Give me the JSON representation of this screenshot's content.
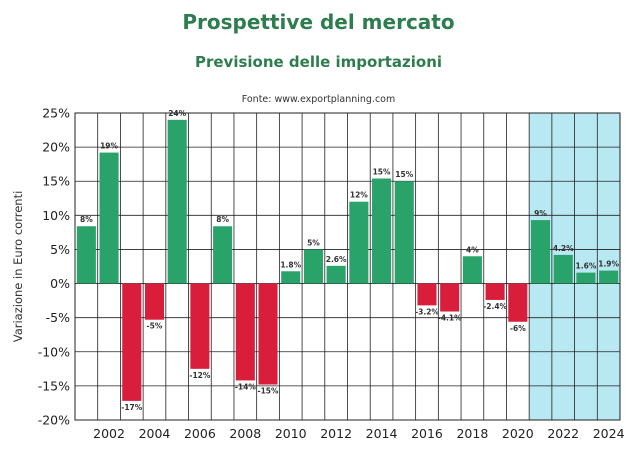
{
  "title": "Prospettive del mercato",
  "subtitle": "Previsione delle importazioni",
  "source": "Fonte: www.exportplanning.com",
  "colors": {
    "positive": "#2aa36b",
    "negative": "#d91e3c",
    "forecast_band": "#b8e8f2",
    "title": "#2e7d4f",
    "grid": "#222222"
  },
  "chart_data": {
    "type": "bar",
    "title": "Prospettive del mercato",
    "subtitle": "Previsione delle importazioni",
    "xlabel": "",
    "ylabel": "Variazione in Euro correnti",
    "ylim": [
      -20,
      25
    ],
    "yticks": [
      "25%",
      "20%",
      "15%",
      "10%",
      "5%",
      "0%",
      "-5%",
      "-10%",
      "-15%",
      "-20%"
    ],
    "ytick_values": [
      25,
      20,
      15,
      10,
      5,
      0,
      -5,
      -10,
      -15,
      -20
    ],
    "xtick_labels": [
      "2002",
      "2004",
      "2006",
      "2008",
      "2010",
      "2012",
      "2014",
      "2016",
      "2018",
      "2020",
      "2022",
      "2024"
    ],
    "categories": [
      2001,
      2002,
      2003,
      2004,
      2005,
      2006,
      2007,
      2008,
      2009,
      2010,
      2011,
      2012,
      2013,
      2014,
      2015,
      2016,
      2017,
      2018,
      2019,
      2020,
      2021,
      2022,
      2023,
      2024
    ],
    "values": [
      8.4,
      19.2,
      -17.2,
      -5.3,
      24.0,
      -12.5,
      8.4,
      -14.2,
      -14.8,
      1.8,
      5.0,
      2.6,
      12.0,
      15.4,
      15.0,
      -3.2,
      -4.1,
      4.0,
      -2.4,
      -5.6,
      9.3,
      4.2,
      1.6,
      1.9
    ],
    "labels": [
      "8%",
      "19%",
      "-17%",
      "-5%",
      "24%",
      "-12%",
      "8%",
      "-14%",
      "-15%",
      "1.8%",
      "5%",
      "2.6%",
      "12%",
      "15%",
      "15%",
      "-3.2%",
      "-4.1%",
      "4%",
      "-2.4%",
      "-6%",
      "9%",
      "4.2%",
      "1.6%",
      "1.9%"
    ],
    "forecast_start": 2021,
    "grid": true
  }
}
